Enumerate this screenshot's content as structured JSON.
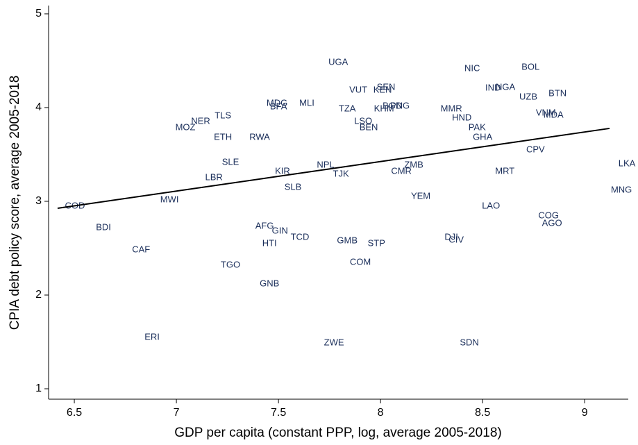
{
  "chart_data": {
    "type": "scatter",
    "xlabel": "GDP per capita (constant PPP, log, average 2005-2018)",
    "ylabel": "CPIA debt policy score, average 2005-2018",
    "xlim": [
      6.374,
      9.2
    ],
    "ylim": [
      0.889,
      5.07
    ],
    "xticks": [
      6.5,
      7,
      7.5,
      8,
      8.5,
      9
    ],
    "yticks": [
      1,
      2,
      3,
      4,
      5
    ],
    "point_color": "#1a2e5a",
    "points": [
      {
        "label": "UGA",
        "x": 7.793,
        "y": 4.48
      },
      {
        "label": "NIC",
        "x": 8.449,
        "y": 4.415
      },
      {
        "label": "BOL",
        "x": 8.735,
        "y": 4.43
      },
      {
        "label": "SEN",
        "x": 8.027,
        "y": 4.215
      },
      {
        "label": "VUT",
        "x": 7.891,
        "y": 4.185
      },
      {
        "label": "KEN",
        "x": 8.01,
        "y": 4.185
      },
      {
        "label": "IND",
        "x": 8.551,
        "y": 4.207
      },
      {
        "label": "NGA",
        "x": 8.612,
        "y": 4.215
      },
      {
        "label": "UZB",
        "x": 8.724,
        "y": 4.11
      },
      {
        "label": "BTN",
        "x": 8.867,
        "y": 4.148
      },
      {
        "label": "MDG",
        "x": 7.493,
        "y": 4.044
      },
      {
        "label": "BFA",
        "x": 7.5,
        "y": 4.007
      },
      {
        "label": "MLI",
        "x": 7.639,
        "y": 4.044
      },
      {
        "label": "TZA",
        "x": 7.837,
        "y": 3.985
      },
      {
        "label": "KHM",
        "x": 8.017,
        "y": 3.985
      },
      {
        "label": "BGD",
        "x": 8.058,
        "y": 4.015
      },
      {
        "label": "PNG",
        "x": 8.095,
        "y": 4.015
      },
      {
        "label": "MMR",
        "x": 8.347,
        "y": 3.985
      },
      {
        "label": "TLS",
        "x": 7.228,
        "y": 3.911
      },
      {
        "label": "NER",
        "x": 7.119,
        "y": 3.852
      },
      {
        "label": "MOZ",
        "x": 7.044,
        "y": 3.785
      },
      {
        "label": "LSO",
        "x": 7.915,
        "y": 3.852
      },
      {
        "label": "BEN",
        "x": 7.942,
        "y": 3.785
      },
      {
        "label": "HND",
        "x": 8.398,
        "y": 3.889
      },
      {
        "label": "VNM",
        "x": 8.81,
        "y": 3.941
      },
      {
        "label": "MDA",
        "x": 8.847,
        "y": 3.919
      },
      {
        "label": "PAK",
        "x": 8.473,
        "y": 3.785
      },
      {
        "label": "ETH",
        "x": 7.228,
        "y": 3.681
      },
      {
        "label": "RWA",
        "x": 7.408,
        "y": 3.681
      },
      {
        "label": "GHA",
        "x": 8.5,
        "y": 3.681
      },
      {
        "label": "CPV",
        "x": 8.759,
        "y": 3.548
      },
      {
        "label": "SLE",
        "x": 7.265,
        "y": 3.415
      },
      {
        "label": "NPL",
        "x": 7.731,
        "y": 3.385
      },
      {
        "label": "ZMB",
        "x": 8.163,
        "y": 3.385
      },
      {
        "label": "KIR",
        "x": 7.52,
        "y": 3.319
      },
      {
        "label": "CMR",
        "x": 8.102,
        "y": 3.319
      },
      {
        "label": "MRT",
        "x": 8.609,
        "y": 3.319
      },
      {
        "label": "LKA",
        "x": 9.207,
        "y": 3.4
      },
      {
        "label": "TJK",
        "x": 7.806,
        "y": 3.289
      },
      {
        "label": "LBR",
        "x": 7.184,
        "y": 3.252
      },
      {
        "label": "SLB",
        "x": 7.571,
        "y": 3.148
      },
      {
        "label": "MNG",
        "x": 9.18,
        "y": 3.119
      },
      {
        "label": "YEM",
        "x": 8.197,
        "y": 3.052
      },
      {
        "label": "MWI",
        "x": 6.966,
        "y": 3.015
      },
      {
        "label": "COD",
        "x": 6.503,
        "y": 2.948
      },
      {
        "label": "LAO",
        "x": 8.541,
        "y": 2.948
      },
      {
        "label": "COG",
        "x": 8.823,
        "y": 2.844
      },
      {
        "label": "AGO",
        "x": 8.84,
        "y": 2.763
      },
      {
        "label": "BDI",
        "x": 6.643,
        "y": 2.719
      },
      {
        "label": "AFG",
        "x": 7.432,
        "y": 2.733
      },
      {
        "label": "GIN",
        "x": 7.507,
        "y": 2.681
      },
      {
        "label": "TCD",
        "x": 7.605,
        "y": 2.615
      },
      {
        "label": "DJI",
        "x": 8.347,
        "y": 2.615
      },
      {
        "label": "CIV",
        "x": 8.371,
        "y": 2.585
      },
      {
        "label": "GMB",
        "x": 7.837,
        "y": 2.578
      },
      {
        "label": "STP",
        "x": 7.98,
        "y": 2.548
      },
      {
        "label": "HTI",
        "x": 7.456,
        "y": 2.548
      },
      {
        "label": "CAF",
        "x": 6.827,
        "y": 2.481
      },
      {
        "label": "COM",
        "x": 7.901,
        "y": 2.348
      },
      {
        "label": "TGO",
        "x": 7.265,
        "y": 2.319
      },
      {
        "label": "GNB",
        "x": 7.456,
        "y": 2.119
      },
      {
        "label": "ERI",
        "x": 6.881,
        "y": 1.548
      },
      {
        "label": "ZWE",
        "x": 7.772,
        "y": 1.489
      },
      {
        "label": "SDN",
        "x": 8.435,
        "y": 1.489
      }
    ],
    "fit_line": {
      "color": "#000000",
      "x": [
        6.418,
        9.122
      ],
      "y": [
        2.926,
        3.778
      ]
    }
  }
}
